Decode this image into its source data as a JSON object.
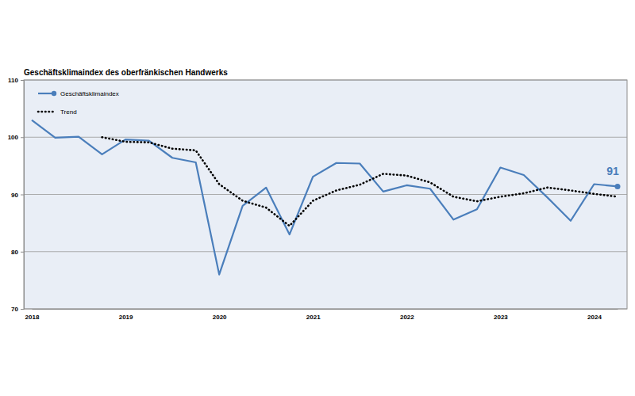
{
  "chart_data": {
    "type": "line",
    "title": "Geschäftsklimaindex des oberfränkischen Handwerks",
    "categories": [
      "2018",
      null,
      null,
      null,
      "2019",
      null,
      null,
      null,
      "2020",
      null,
      null,
      null,
      "2021",
      null,
      null,
      null,
      "2022",
      null,
      null,
      null,
      "2023",
      null,
      null,
      null,
      "2024",
      null
    ],
    "series": [
      {
        "name": "Geschäftsklimaindex",
        "color": "#4a7ebb",
        "line_style": "solid",
        "values": [
          103.0,
          99.9,
          100.1,
          97.0,
          99.6,
          99.4,
          96.4,
          95.6,
          76.0,
          88.0,
          91.2,
          83.0,
          93.1,
          95.5,
          95.4,
          90.5,
          91.6,
          91.0,
          85.6,
          87.4,
          94.7,
          93.4,
          89.5,
          85.4,
          91.8,
          91.4
        ],
        "value_labels": [
          null,
          null,
          null,
          null,
          null,
          null,
          null,
          null,
          null,
          null,
          null,
          null,
          null,
          null,
          null,
          null,
          null,
          null,
          null,
          null,
          null,
          null,
          null,
          null,
          null,
          "91"
        ]
      },
      {
        "name": "Trend",
        "color": "#000000",
        "line_style": "dotted",
        "values": [
          null,
          null,
          null,
          100.0,
          99.2,
          99.1,
          98.0,
          97.7,
          91.8,
          88.9,
          87.7,
          84.5,
          88.9,
          90.7,
          91.7,
          93.6,
          93.3,
          92.1,
          89.6,
          88.8,
          89.6,
          90.2,
          91.2,
          90.7,
          90.1,
          89.6
        ]
      }
    ],
    "ylim": [
      70,
      110
    ],
    "yticks": [
      70,
      80,
      90,
      100,
      110
    ],
    "grid": true,
    "legend": "upper left"
  }
}
